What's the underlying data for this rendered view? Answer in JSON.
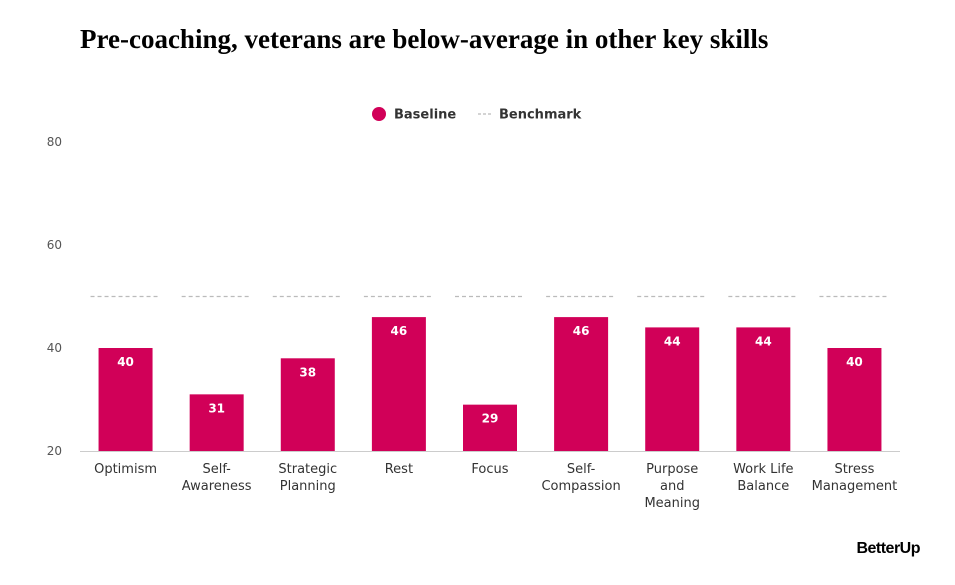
{
  "title": "Pre-coaching, veterans are below-average in other key skills",
  "brand": "BetterUp",
  "chart_data": {
    "type": "bar",
    "categories": [
      [
        "Optimism"
      ],
      [
        "Self-",
        "Awareness"
      ],
      [
        "Strategic",
        "Planning"
      ],
      [
        "Rest"
      ],
      [
        "Focus"
      ],
      [
        "Self-",
        "Compassion"
      ],
      [
        "Purpose",
        "and",
        "Meaning"
      ],
      [
        "Work Life",
        "Balance"
      ],
      [
        "Stress",
        "Management"
      ]
    ],
    "series": [
      {
        "name": "Baseline",
        "values": [
          40,
          31,
          38,
          46,
          29,
          46,
          44,
          44,
          40
        ],
        "color": "#D10058"
      },
      {
        "name": "Benchmark",
        "values": [
          50,
          50,
          50,
          50,
          50,
          50,
          50,
          50,
          50
        ],
        "color": "#BBBBBB",
        "style": "dashed"
      }
    ],
    "ylim": [
      20,
      80
    ],
    "yticks": [
      20,
      40,
      60,
      80
    ],
    "legend_position": "top-center",
    "grid": false
  }
}
